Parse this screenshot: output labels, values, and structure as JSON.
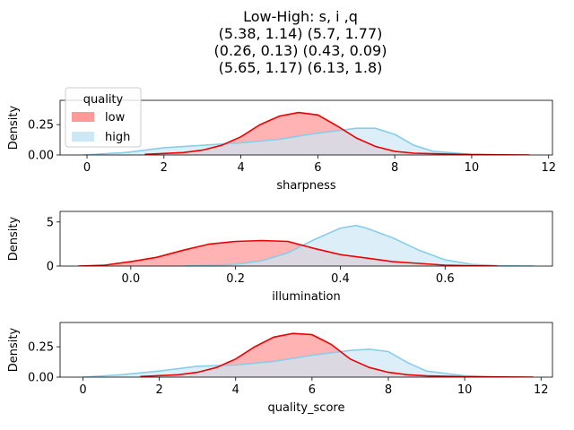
{
  "title_lines": [
    "Low-High: s, i ,q",
    "(5.38, 1.14) (5.7, 1.77)",
    "(0.26, 0.13) (0.43, 0.09)",
    "(5.65, 1.17) (6.13, 1.8)"
  ],
  "legend": {
    "title": "quality",
    "entries": [
      {
        "label": "low",
        "fill": "#ff9999",
        "line": "#ee0000"
      },
      {
        "label": "high",
        "fill": "#cde8f5",
        "line": "#87ceeb"
      }
    ]
  },
  "colors": {
    "low_fill": "#ff9999",
    "low_line": "#ee0000",
    "high_fill": "#cde8f5",
    "high_line": "#87ceeb",
    "overlap": "#c8a7b6"
  },
  "chart_data": [
    {
      "type": "area",
      "xlabel": "sharpness",
      "ylabel": "Density",
      "xlim": [
        -0.7,
        12.1
      ],
      "ylim": [
        0,
        0.45
      ],
      "xticks": [
        0,
        2,
        4,
        6,
        8,
        10,
        12
      ],
      "yticks": [
        0.0,
        0.25
      ],
      "ytick_labels": [
        "0.00",
        "0.25"
      ],
      "series": [
        {
          "name": "low",
          "mean": 5.38,
          "std": 1.14,
          "kde": {
            "x": [
              1.5,
              2.5,
              3.0,
              3.5,
              4.0,
              4.5,
              5.0,
              5.5,
              6.0,
              6.5,
              7.0,
              7.5,
              8.0,
              8.5,
              9.0,
              10.0,
              11.5
            ],
            "y": [
              0.005,
              0.02,
              0.04,
              0.08,
              0.15,
              0.25,
              0.32,
              0.35,
              0.33,
              0.24,
              0.14,
              0.07,
              0.03,
              0.015,
              0.01,
              0.004,
              0.0
            ]
          }
        },
        {
          "name": "high",
          "mean": 5.7,
          "std": 1.77,
          "kde": {
            "x": [
              -0.1,
              1.0,
              2.0,
              3.0,
              4.0,
              5.0,
              6.0,
              6.5,
              7.0,
              7.5,
              8.0,
              8.5,
              9.0,
              10.0,
              11.0
            ],
            "y": [
              0.0,
              0.02,
              0.06,
              0.08,
              0.1,
              0.13,
              0.18,
              0.2,
              0.22,
              0.22,
              0.17,
              0.08,
              0.03,
              0.005,
              0.0
            ]
          }
        }
      ]
    },
    {
      "type": "area",
      "xlabel": "illumination",
      "ylabel": "Density",
      "xlim": [
        -0.135,
        0.805
      ],
      "ylim": [
        0,
        6.2
      ],
      "xticks": [
        0.0,
        0.2,
        0.4,
        0.6
      ],
      "xtick_labels": [
        "0.0",
        "0.2",
        "0.4",
        "0.6"
      ],
      "yticks": [
        0,
        5
      ],
      "series": [
        {
          "name": "low",
          "mean": 0.26,
          "std": 0.13,
          "kde": {
            "x": [
              -0.1,
              -0.05,
              0.0,
              0.05,
              0.1,
              0.15,
              0.2,
              0.25,
              0.3,
              0.35,
              0.4,
              0.45,
              0.5,
              0.55,
              0.6,
              0.65,
              0.7
            ],
            "y": [
              0.0,
              0.1,
              0.5,
              1.0,
              1.8,
              2.5,
              2.8,
              2.9,
              2.8,
              2.0,
              1.3,
              0.9,
              0.5,
              0.3,
              0.1,
              0.03,
              0.0
            ]
          }
        },
        {
          "name": "high",
          "mean": 0.43,
          "std": 0.09,
          "kde": {
            "x": [
              0.1,
              0.2,
              0.25,
              0.3,
              0.35,
              0.4,
              0.43,
              0.45,
              0.5,
              0.55,
              0.6,
              0.65,
              0.7,
              0.77
            ],
            "y": [
              0.0,
              0.2,
              0.6,
              1.5,
              3.0,
              4.3,
              4.6,
              4.3,
              3.2,
              1.8,
              0.7,
              0.2,
              0.05,
              0.0
            ]
          }
        }
      ]
    },
    {
      "type": "area",
      "xlabel": "quality_score",
      "ylabel": "Density",
      "xlim": [
        -0.6,
        12.3
      ],
      "ylim": [
        0,
        0.45
      ],
      "xticks": [
        0,
        2,
        4,
        6,
        8,
        10,
        12
      ],
      "yticks": [
        0.0,
        0.25
      ],
      "ytick_labels": [
        "0.00",
        "0.25"
      ],
      "series": [
        {
          "name": "low",
          "mean": 5.65,
          "std": 1.17,
          "kde": {
            "x": [
              1.5,
              2.5,
              3.0,
              3.5,
              4.0,
              4.5,
              5.0,
              5.5,
              6.0,
              6.5,
              7.0,
              7.5,
              8.0,
              8.5,
              9.0,
              10.0,
              11.8
            ],
            "y": [
              0.005,
              0.02,
              0.04,
              0.08,
              0.15,
              0.25,
              0.33,
              0.36,
              0.35,
              0.27,
              0.15,
              0.08,
              0.04,
              0.02,
              0.01,
              0.004,
              0.0
            ]
          }
        },
        {
          "name": "high",
          "mean": 6.13,
          "std": 1.8,
          "kde": {
            "x": [
              0.0,
              1.0,
              2.0,
              3.0,
              4.0,
              5.0,
              6.0,
              7.0,
              7.5,
              8.0,
              8.5,
              9.0,
              10.0,
              11.0
            ],
            "y": [
              0.0,
              0.02,
              0.05,
              0.09,
              0.1,
              0.13,
              0.18,
              0.22,
              0.23,
              0.21,
              0.12,
              0.05,
              0.01,
              0.0
            ]
          }
        }
      ]
    }
  ]
}
